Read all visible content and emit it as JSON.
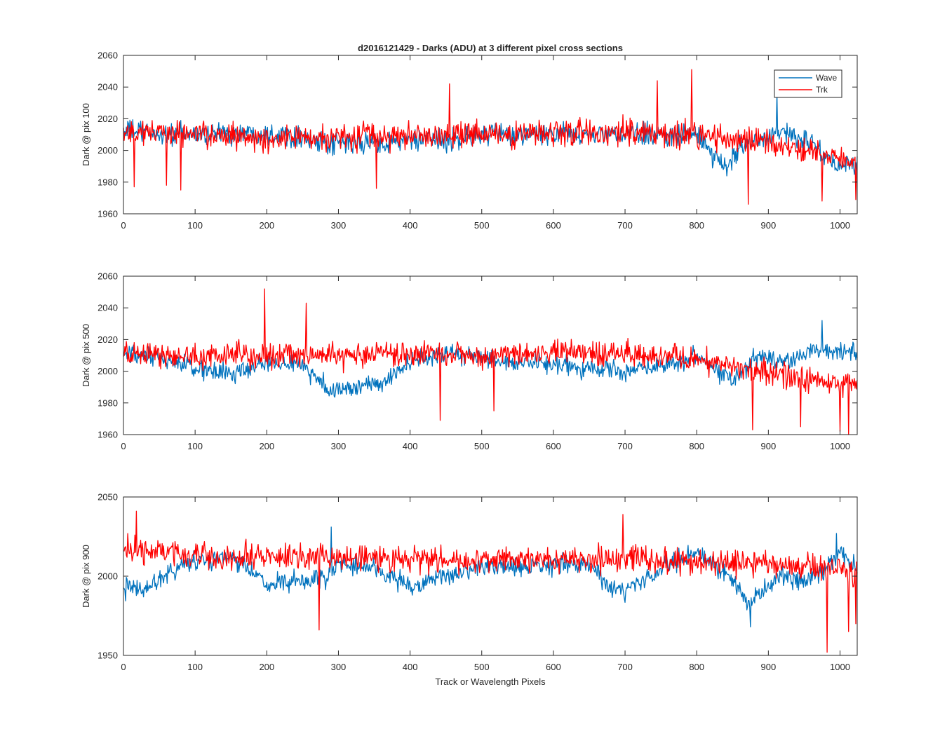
{
  "figure": {
    "title": "d2016121429 - Darks (ADU) at 3 different pixel cross sections",
    "xlabel": "Track or Wavelength Pixels"
  },
  "chart_data": [
    {
      "type": "line",
      "title": "d2016121429 - Darks (ADU) at 3 different pixel cross sections",
      "xlabel": "",
      "ylabel": "Dark @ pix 100",
      "xlim": [
        0,
        1024
      ],
      "ylim": [
        1960,
        2060
      ],
      "xticks": [
        "0",
        "100",
        "200",
        "300",
        "400",
        "500",
        "600",
        "700",
        "800",
        "900",
        "1000"
      ],
      "yticks": [
        "1960",
        "1980",
        "2000",
        "2020",
        "2040",
        "2060"
      ],
      "grid": false,
      "legend": {
        "position": "top-right",
        "entries": [
          "Wave",
          "Trk"
        ]
      },
      "series": [
        {
          "name": "Wave",
          "color": "#0072BD",
          "mean_profile": [
            [
              0,
              2013
            ],
            [
              50,
              2010
            ],
            [
              100,
              2010
            ],
            [
              150,
              2011
            ],
            [
              200,
              2011
            ],
            [
              250,
              2009
            ],
            [
              280,
              2003
            ],
            [
              300,
              2004
            ],
            [
              400,
              2006
            ],
            [
              450,
              2006
            ],
            [
              500,
              2010
            ],
            [
              600,
              2010
            ],
            [
              700,
              2010
            ],
            [
              800,
              2010
            ],
            [
              820,
              1998
            ],
            [
              840,
              1988
            ],
            [
              860,
              2003
            ],
            [
              900,
              2010
            ],
            [
              920,
              2012
            ],
            [
              940,
              2008
            ],
            [
              960,
              2004
            ],
            [
              980,
              1996
            ],
            [
              1000,
              1990
            ],
            [
              1024,
              1990
            ]
          ],
          "noise_amplitude": 9,
          "spikes": [
            [
              912,
              2036
            ]
          ]
        },
        {
          "name": "Trk",
          "color": "#FF0000",
          "mean_profile": [
            [
              0,
              2012
            ],
            [
              100,
              2010
            ],
            [
              200,
              2007
            ],
            [
              300,
              2009
            ],
            [
              400,
              2009
            ],
            [
              500,
              2009
            ],
            [
              600,
              2011
            ],
            [
              700,
              2012
            ],
            [
              800,
              2010
            ],
            [
              900,
              2004
            ],
            [
              950,
              2000
            ],
            [
              1000,
              1995
            ],
            [
              1024,
              1990
            ]
          ],
          "noise_amplitude": 11,
          "spikes": [
            [
              15,
              1977
            ],
            [
              60,
              1978
            ],
            [
              80,
              1975
            ],
            [
              353,
              1976
            ],
            [
              455,
              2042
            ],
            [
              745,
              2044
            ],
            [
              793,
              2051
            ],
            [
              872,
              1966
            ],
            [
              975,
              1968
            ],
            [
              1022,
              1969
            ]
          ]
        }
      ]
    },
    {
      "type": "line",
      "xlabel": "",
      "ylabel": "Dark @ pix 500",
      "xlim": [
        0,
        1024
      ],
      "ylim": [
        1960,
        2060
      ],
      "xticks": [
        "0",
        "100",
        "200",
        "300",
        "400",
        "500",
        "600",
        "700",
        "800",
        "900",
        "1000"
      ],
      "yticks": [
        "1960",
        "1980",
        "2000",
        "2020",
        "2040",
        "2060"
      ],
      "grid": false,
      "series": [
        {
          "name": "Wave",
          "color": "#0072BD",
          "mean_profile": [
            [
              0,
              2010
            ],
            [
              50,
              2008
            ],
            [
              100,
              2002
            ],
            [
              150,
              1998
            ],
            [
              200,
              2005
            ],
            [
              250,
              2005
            ],
            [
              270,
              1995
            ],
            [
              290,
              1988
            ],
            [
              330,
              1990
            ],
            [
              360,
              1992
            ],
            [
              380,
              2000
            ],
            [
              400,
              2005
            ],
            [
              450,
              2012
            ],
            [
              500,
              2008
            ],
            [
              550,
              2005
            ],
            [
              600,
              2004
            ],
            [
              650,
              2002
            ],
            [
              700,
              2000
            ],
            [
              750,
              2004
            ],
            [
              800,
              2010
            ],
            [
              830,
              2000
            ],
            [
              850,
              1995
            ],
            [
              880,
              2008
            ],
            [
              900,
              2010
            ],
            [
              920,
              2005
            ],
            [
              940,
              2008
            ],
            [
              960,
              2015
            ],
            [
              1000,
              2012
            ],
            [
              1024,
              2012
            ]
          ],
          "noise_amplitude": 8,
          "spikes": [
            [
              975,
              2032
            ]
          ]
        },
        {
          "name": "Trk",
          "color": "#FF0000",
          "mean_profile": [
            [
              0,
              2010
            ],
            [
              200,
              2010
            ],
            [
              400,
              2010
            ],
            [
              500,
              2010
            ],
            [
              600,
              2012
            ],
            [
              700,
              2010
            ],
            [
              800,
              2008
            ],
            [
              880,
              2000
            ],
            [
              950,
              1995
            ],
            [
              1000,
              1992
            ],
            [
              1024,
              1992
            ]
          ],
          "noise_amplitude": 10,
          "spikes": [
            [
              197,
              2052
            ],
            [
              255,
              2043
            ],
            [
              442,
              1969
            ],
            [
              517,
              1975
            ],
            [
              878,
              1963
            ],
            [
              945,
              1965
            ],
            [
              1000,
              1962
            ],
            [
              1012,
              1960
            ]
          ]
        }
      ]
    },
    {
      "type": "line",
      "xlabel": "Track or Wavelength Pixels",
      "ylabel": "Dark @ pix 900",
      "xlim": [
        0,
        1024
      ],
      "ylim": [
        1950,
        2050
      ],
      "xticks": [
        "0",
        "100",
        "200",
        "300",
        "400",
        "500",
        "600",
        "700",
        "800",
        "900",
        "1000"
      ],
      "yticks": [
        "1950",
        "2000",
        "2050"
      ],
      "grid": false,
      "series": [
        {
          "name": "Wave",
          "color": "#0072BD",
          "mean_profile": [
            [
              0,
              1992
            ],
            [
              30,
              1992
            ],
            [
              60,
              2002
            ],
            [
              100,
              2010
            ],
            [
              150,
              2012
            ],
            [
              200,
              1995
            ],
            [
              250,
              1996
            ],
            [
              280,
              1998
            ],
            [
              300,
              2008
            ],
            [
              350,
              2005
            ],
            [
              380,
              1998
            ],
            [
              400,
              1993
            ],
            [
              430,
              1998
            ],
            [
              500,
              2005
            ],
            [
              600,
              2007
            ],
            [
              650,
              2008
            ],
            [
              680,
              1992
            ],
            [
              700,
              1990
            ],
            [
              750,
              2005
            ],
            [
              800,
              2015
            ],
            [
              820,
              2010
            ],
            [
              850,
              1998
            ],
            [
              870,
              1982
            ],
            [
              890,
              1990
            ],
            [
              920,
              2000
            ],
            [
              950,
              1995
            ],
            [
              980,
              2005
            ],
            [
              1000,
              2015
            ],
            [
              1024,
              2005
            ]
          ],
          "noise_amplitude": 8,
          "spikes": [
            [
              290,
              2031
            ],
            [
              875,
              1968
            ],
            [
              995,
              2027
            ]
          ]
        },
        {
          "name": "Trk",
          "color": "#FF0000",
          "mean_profile": [
            [
              0,
              2017
            ],
            [
              100,
              2012
            ],
            [
              200,
              2012
            ],
            [
              300,
              2012
            ],
            [
              400,
              2010
            ],
            [
              500,
              2010
            ],
            [
              600,
              2010
            ],
            [
              700,
              2011
            ],
            [
              800,
              2009
            ],
            [
              900,
              2008
            ],
            [
              950,
              2006
            ],
            [
              1000,
              2004
            ],
            [
              1024,
              2003
            ]
          ],
          "noise_amplitude": 11,
          "spikes": [
            [
              18,
              2041
            ],
            [
              273,
              1966
            ],
            [
              697,
              2039
            ],
            [
              982,
              1952
            ],
            [
              1012,
              1965
            ],
            [
              1022,
              1970
            ]
          ]
        }
      ]
    }
  ]
}
